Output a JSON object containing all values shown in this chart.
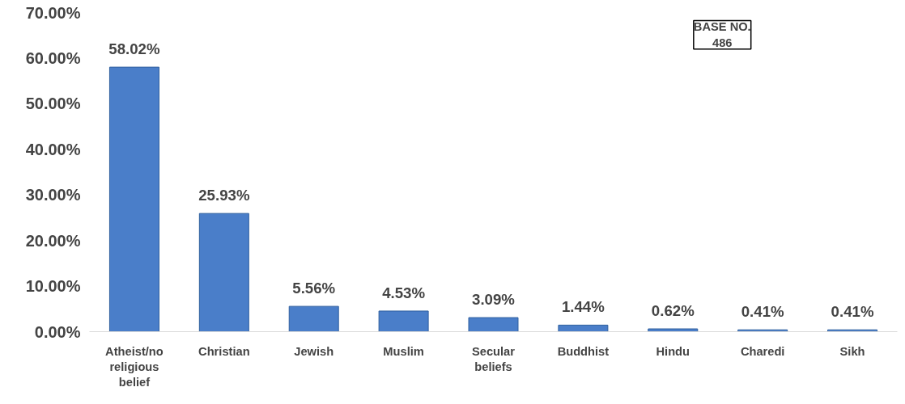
{
  "chart_data": {
    "type": "bar",
    "categories": [
      "Atheist/no religious belief",
      "Christian",
      "Jewish",
      "Muslim",
      "Secular beliefs",
      "Buddhist",
      "Hindu",
      "Charedi",
      "Sikh"
    ],
    "values": [
      58.02,
      25.93,
      5.56,
      4.53,
      3.09,
      1.44,
      0.62,
      0.41,
      0.41
    ],
    "color": "#4a7ec9",
    "ylim": [
      0,
      70
    ],
    "yticks": [
      {
        "value": 0,
        "label": "0.00%"
      },
      {
        "value": 10,
        "label": "10.00%"
      },
      {
        "value": 20,
        "label": "20.00%"
      },
      {
        "value": 30,
        "label": "30.00%"
      },
      {
        "value": 40,
        "label": "40.00%"
      },
      {
        "value": 50,
        "label": "50.00%"
      },
      {
        "value": 60,
        "label": "60.00%"
      },
      {
        "value": 70,
        "label": "70.00%"
      }
    ],
    "grid": false,
    "value_labels": [
      "58.02%",
      "25.93%",
      "5.56%",
      "4.53%",
      "3.09%",
      "1.44%",
      "0.62%",
      "0.41%",
      "0.41%"
    ],
    "annotations": [
      "BASE NO. 486"
    ]
  }
}
